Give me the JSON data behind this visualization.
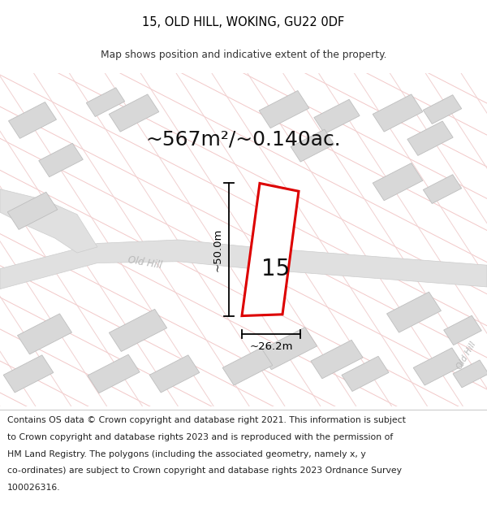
{
  "title_line1": "15, OLD HILL, WOKING, GU22 0DF",
  "title_line2": "Map shows position and indicative extent of the property.",
  "area_label": "~567m²/~0.140ac.",
  "property_number": "15",
  "dim_height": "~50.0m",
  "dim_width": "~26.2m",
  "street_label": "Old Hill",
  "street_label2": "Old Hill",
  "footer_lines": [
    "Contains OS data © Crown copyright and database right 2021. This information is subject",
    "to Crown copyright and database rights 2023 and is reproduced with the permission of",
    "HM Land Registry. The polygons (including the associated geometry, namely x, y",
    "co-ordinates) are subject to Crown copyright and database rights 2023 Ordnance Survey",
    "100026316."
  ],
  "map_bg": "#ffffff",
  "road_fill": "#e0e0e0",
  "road_stroke": "#cccccc",
  "building_fill": "#d8d8d8",
  "building_stroke": "#bebebe",
  "property_fill": "#ffffff",
  "property_stroke": "#dd0000",
  "grid_color": "#f2c8c8",
  "grid_color2": "#f0d0d0",
  "street_text_color": "#b0b0b0",
  "footer_fontsize": 7.8,
  "title_fontsize": 10.5,
  "subtitle_fontsize": 8.8,
  "area_fontsize": 18,
  "prop_num_fontsize": 20,
  "dim_fontsize": 9.5
}
